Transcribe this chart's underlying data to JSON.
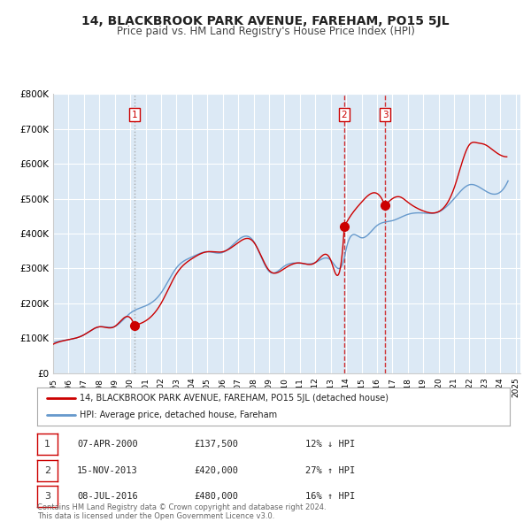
{
  "title": "14, BLACKBROOK PARK AVENUE, FAREHAM, PO15 5JL",
  "subtitle": "Price paid vs. HM Land Registry's House Price Index (HPI)",
  "bg_color": "#dce9f5",
  "fig_bg_color": "#ffffff",
  "red_line_color": "#cc0000",
  "blue_line_color": "#6699cc",
  "ylim": [
    0,
    800000
  ],
  "yticks": [
    0,
    100000,
    200000,
    300000,
    400000,
    500000,
    600000,
    700000,
    800000
  ],
  "ytick_labels": [
    "£0",
    "£100K",
    "£200K",
    "£300K",
    "£400K",
    "£500K",
    "£600K",
    "£700K",
    "£800K"
  ],
  "xlim_start": 1995.0,
  "xlim_end": 2025.3,
  "xticks": [
    1995,
    1996,
    1997,
    1998,
    1999,
    2000,
    2001,
    2002,
    2003,
    2004,
    2005,
    2006,
    2007,
    2008,
    2009,
    2010,
    2011,
    2012,
    2013,
    2014,
    2015,
    2016,
    2017,
    2018,
    2019,
    2020,
    2021,
    2022,
    2023,
    2024,
    2025
  ],
  "sale_dates": [
    2000.27,
    2013.88,
    2016.52
  ],
  "sale_prices": [
    137500,
    420000,
    480000
  ],
  "sale_labels": [
    "1",
    "2",
    "3"
  ],
  "vline1_style": "dotted",
  "vline2_style": "dashed",
  "vline3_style": "dashed",
  "legend_line1": "14, BLACKBROOK PARK AVENUE, FAREHAM, PO15 5JL (detached house)",
  "legend_line2": "HPI: Average price, detached house, Fareham",
  "table_rows": [
    [
      "1",
      "07-APR-2000",
      "£137,500",
      "12% ↓ HPI"
    ],
    [
      "2",
      "15-NOV-2013",
      "£420,000",
      "27% ↑ HPI"
    ],
    [
      "3",
      "08-JUL-2016",
      "£480,000",
      "16% ↑ HPI"
    ]
  ],
  "footer": "Contains HM Land Registry data © Crown copyright and database right 2024.\nThis data is licensed under the Open Government Licence v3.0.",
  "hpi_keypoints": [
    [
      1995.0,
      88000
    ],
    [
      1996.0,
      96000
    ],
    [
      1997.0,
      110000
    ],
    [
      1998.0,
      133000
    ],
    [
      1999.0,
      134000
    ],
    [
      2000.0,
      172000
    ],
    [
      2001.0,
      193000
    ],
    [
      2002.0,
      230000
    ],
    [
      2003.0,
      302000
    ],
    [
      2004.0,
      333000
    ],
    [
      2005.0,
      348000
    ],
    [
      2006.0,
      346000
    ],
    [
      2007.0,
      382000
    ],
    [
      2008.0,
      378000
    ],
    [
      2009.0,
      292000
    ],
    [
      2010.0,
      307000
    ],
    [
      2011.0,
      315000
    ],
    [
      2012.0,
      317000
    ],
    [
      2013.0,
      324000
    ],
    [
      2013.88,
      330000
    ],
    [
      2014.0,
      355000
    ],
    [
      2015.0,
      388000
    ],
    [
      2016.0,
      423000
    ],
    [
      2016.52,
      433000
    ],
    [
      2017.0,
      437000
    ],
    [
      2018.0,
      455000
    ],
    [
      2019.0,
      459000
    ],
    [
      2020.0,
      462000
    ],
    [
      2021.0,
      500000
    ],
    [
      2022.0,
      540000
    ],
    [
      2023.0,
      523000
    ],
    [
      2024.0,
      519000
    ],
    [
      2024.5,
      551000
    ]
  ],
  "red_keypoints": [
    [
      1995.0,
      83000
    ],
    [
      1996.0,
      96000
    ],
    [
      1997.0,
      110000
    ],
    [
      1998.0,
      133000
    ],
    [
      1999.0,
      134000
    ],
    [
      2000.0,
      159000
    ],
    [
      2000.27,
      137500
    ],
    [
      2000.27,
      137500
    ],
    [
      2001.0,
      150000
    ],
    [
      2002.0,
      200000
    ],
    [
      2003.0,
      285000
    ],
    [
      2004.0,
      328000
    ],
    [
      2005.0,
      348000
    ],
    [
      2006.0,
      348000
    ],
    [
      2007.0,
      374000
    ],
    [
      2008.0,
      376000
    ],
    [
      2009.0,
      295000
    ],
    [
      2010.0,
      300000
    ],
    [
      2011.0,
      316000
    ],
    [
      2012.0,
      317000
    ],
    [
      2013.0,
      324000
    ],
    [
      2013.75,
      344000
    ],
    [
      2013.88,
      420000
    ],
    [
      2013.88,
      420000
    ],
    [
      2014.0,
      430000
    ],
    [
      2015.0,
      490000
    ],
    [
      2016.0,
      515000
    ],
    [
      2016.52,
      480000
    ],
    [
      2016.52,
      480000
    ],
    [
      2017.0,
      500000
    ],
    [
      2017.5,
      505000
    ],
    [
      2018.0,
      490000
    ],
    [
      2019.0,
      465000
    ],
    [
      2020.0,
      463000
    ],
    [
      2021.0,
      530000
    ],
    [
      2022.0,
      655000
    ],
    [
      2022.5,
      660000
    ],
    [
      2023.0,
      655000
    ],
    [
      2023.5,
      640000
    ],
    [
      2024.0,
      625000
    ],
    [
      2024.42,
      620000
    ]
  ]
}
